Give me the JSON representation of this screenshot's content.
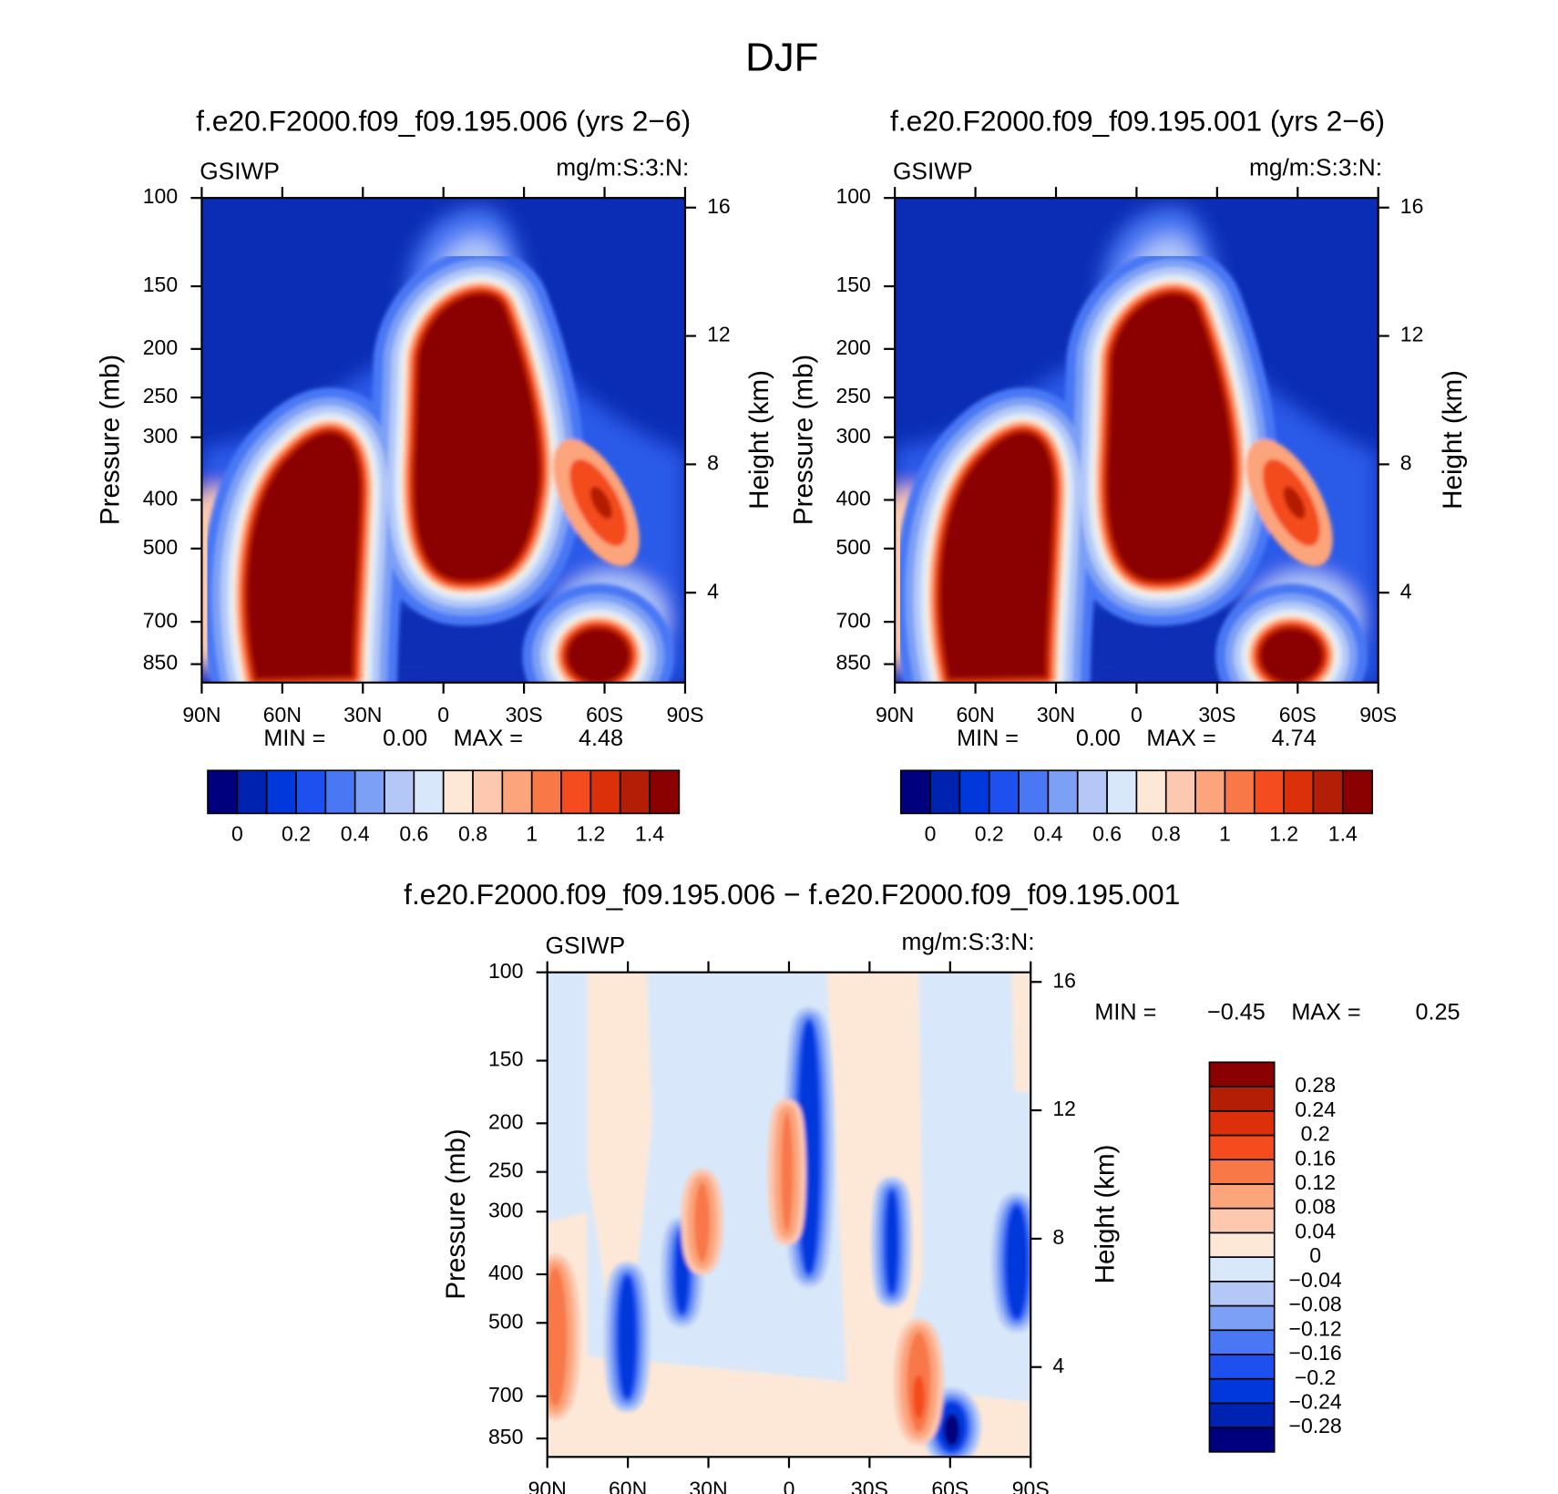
{
  "title": "DJF",
  "chart_data": [
    {
      "type": "contour",
      "title": "f.e20.F2000.f09_f09.195.006 (yrs 2−6)",
      "left_string": "GSIWP",
      "right_string": "mg/m:S:3:N:",
      "ylabel": "Pressure (mb)",
      "y2label": "Height (km)",
      "xlim": [
        90,
        -90
      ],
      "xticks": [
        {
          "value": 90,
          "label": "90N"
        },
        {
          "value": 60,
          "label": "60N"
        },
        {
          "value": 30,
          "label": "30N"
        },
        0,
        {
          "value": -30,
          "label": "30S"
        },
        {
          "value": -60,
          "label": "60S"
        },
        {
          "value": -90,
          "label": "90S"
        }
      ],
      "ylim": [
        925,
        100
      ],
      "ylog": true,
      "yticks": [
        100,
        150,
        200,
        250,
        300,
        400,
        500,
        700,
        850
      ],
      "y2lim": [
        1.2,
        16.3
      ],
      "y2ticks": [
        4,
        8,
        12,
        16
      ],
      "min_label": "MIN =",
      "min": "0.00",
      "max_label": "MAX =",
      "max": "4.48",
      "colorbar": {
        "orientation": "horizontal",
        "levels": [
          0,
          0.1,
          0.2,
          0.3,
          0.4,
          0.5,
          0.6,
          0.7,
          0.8,
          0.9,
          1,
          1.1,
          1.2,
          1.3,
          1.4
        ],
        "ticks": [
          0,
          0.2,
          0.4,
          0.6,
          0.8,
          1,
          1.2,
          1.4
        ],
        "colors": [
          "#00007f",
          "#0022b0",
          "#0038dc",
          "#1e50f0",
          "#4a78f5",
          "#7ca0f5",
          "#b4c8f8",
          "#d8e8fa",
          "#fde8d8",
          "#fcc8b0",
          "#fca47c",
          "#f87848",
          "#f44c1e",
          "#dc300a",
          "#b41e06",
          "#8b0000"
        ]
      }
    },
    {
      "type": "contour",
      "title": "f.e20.F2000.f09_f09.195.001 (yrs 2−6)",
      "left_string": "GSIWP",
      "right_string": "mg/m:S:3:N:",
      "ylabel": "Pressure (mb)",
      "y2label": "Height (km)",
      "xlim": [
        90,
        -90
      ],
      "xticks": [
        {
          "value": 90,
          "label": "90N"
        },
        {
          "value": 60,
          "label": "60N"
        },
        {
          "value": 30,
          "label": "30N"
        },
        0,
        {
          "value": -30,
          "label": "30S"
        },
        {
          "value": -60,
          "label": "60S"
        },
        {
          "value": -90,
          "label": "90S"
        }
      ],
      "ylim": [
        925,
        100
      ],
      "ylog": true,
      "yticks": [
        100,
        150,
        200,
        250,
        300,
        400,
        500,
        700,
        850
      ],
      "y2lim": [
        1.2,
        16.3
      ],
      "y2ticks": [
        4,
        8,
        12,
        16
      ],
      "min_label": "MIN =",
      "min": "0.00",
      "max_label": "MAX =",
      "max": "4.74",
      "colorbar": {
        "orientation": "horizontal",
        "levels": [
          0,
          0.1,
          0.2,
          0.3,
          0.4,
          0.5,
          0.6,
          0.7,
          0.8,
          0.9,
          1,
          1.1,
          1.2,
          1.3,
          1.4
        ],
        "ticks": [
          0,
          0.2,
          0.4,
          0.6,
          0.8,
          1,
          1.2,
          1.4
        ],
        "colors": [
          "#00007f",
          "#0022b0",
          "#0038dc",
          "#1e50f0",
          "#4a78f5",
          "#7ca0f5",
          "#b4c8f8",
          "#d8e8fa",
          "#fde8d8",
          "#fcc8b0",
          "#fca47c",
          "#f87848",
          "#f44c1e",
          "#dc300a",
          "#b41e06",
          "#8b0000"
        ]
      }
    },
    {
      "type": "contour",
      "title": "f.e20.F2000.f09_f09.195.006 − f.e20.F2000.f09_f09.195.001",
      "left_string": "GSIWP",
      "right_string": "mg/m:S:3:N:",
      "ylabel": "Pressure (mb)",
      "y2label": "Height (km)",
      "xlim": [
        90,
        -90
      ],
      "xticks": [
        {
          "value": 90,
          "label": "90N"
        },
        {
          "value": 60,
          "label": "60N"
        },
        {
          "value": 30,
          "label": "30N"
        },
        0,
        {
          "value": -30,
          "label": "30S"
        },
        {
          "value": -60,
          "label": "60S"
        },
        {
          "value": -90,
          "label": "90S"
        }
      ],
      "ylim": [
        925,
        100
      ],
      "ylog": true,
      "yticks": [
        100,
        150,
        200,
        250,
        300,
        400,
        500,
        700,
        850
      ],
      "y2lim": [
        1.2,
        16.3
      ],
      "y2ticks": [
        4,
        8,
        12,
        16
      ],
      "min_label": "MIN =",
      "min": "−0.45",
      "max_label": "MAX =",
      "max": "0.25",
      "colorbar": {
        "orientation": "vertical",
        "levels": [
          {
            "value": -0.28,
            "label": "−0.28"
          },
          {
            "value": -0.24,
            "label": "−0.24"
          },
          {
            "value": -0.2,
            "label": "−0.2"
          },
          {
            "value": -0.16,
            "label": "−0.16"
          },
          {
            "value": -0.12,
            "label": "−0.12"
          },
          {
            "value": -0.08,
            "label": "−0.08"
          },
          {
            "value": -0.04,
            "label": "−0.04"
          },
          0,
          0.04,
          0.08,
          0.12,
          0.16,
          0.2,
          0.24,
          0.28
        ],
        "colors": [
          "#00007f",
          "#0022b0",
          "#0038dc",
          "#1e50f0",
          "#4a78f5",
          "#7ca0f5",
          "#b4c8f8",
          "#d8e8fa",
          "#fde8d8",
          "#fcc8b0",
          "#fca47c",
          "#f87848",
          "#f44c1e",
          "#dc300a",
          "#b41e06",
          "#8b0000"
        ]
      }
    }
  ]
}
